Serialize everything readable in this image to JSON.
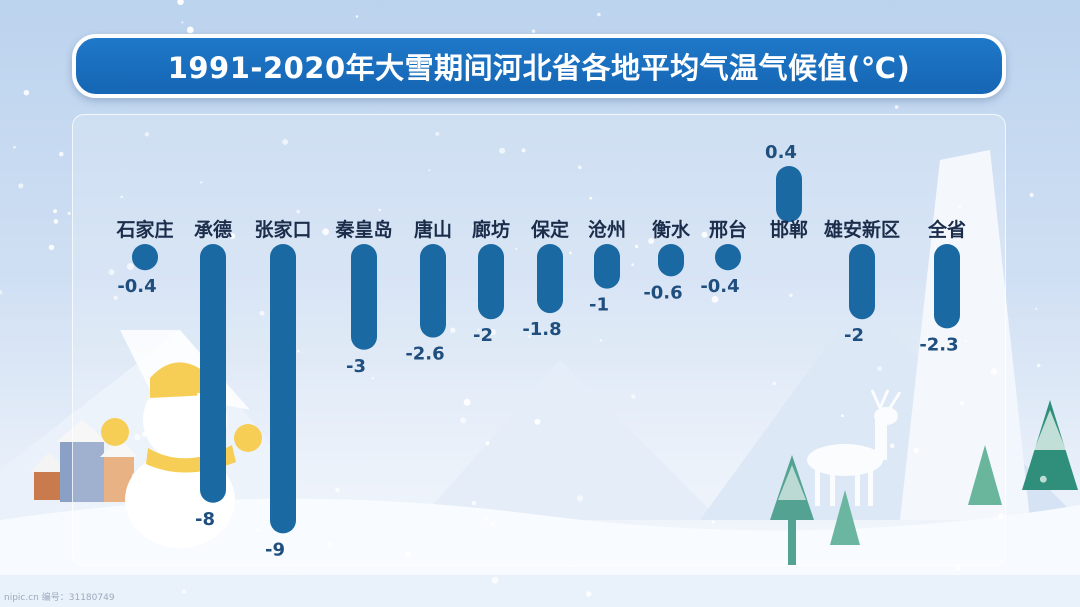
{
  "header": {
    "title": "1991-2020年大雪期间河北省各地平均气温气候值(℃)"
  },
  "footer": {
    "watermark": "nipic.cn  编号：31180749"
  },
  "colors": {
    "bar": "#1b69a3",
    "title_bg": "#1566b4",
    "label": "#1b2d4a",
    "value": "#1f4f7e"
  },
  "chart_data": {
    "type": "bar",
    "title": "1991-2020年大雪期间河北省各地平均气温气候值(℃)",
    "categories": [
      "石家庄",
      "承德",
      "张家口",
      "秦皇岛",
      "唐山",
      "廊坊",
      "保定",
      "沧州",
      "衡水",
      "邢台",
      "邯郸",
      "雄安新区",
      "全省"
    ],
    "values": [
      -0.4,
      -8,
      -9,
      -3,
      -2.6,
      -2,
      -1.8,
      -1,
      -0.6,
      -0.4,
      0.4,
      -2,
      -2.3
    ],
    "value_labels": [
      "-0.4",
      "-8",
      "-9",
      "-3",
      "-2.6",
      "-2",
      "-1.8",
      "-1",
      "-0.6",
      "-0.4",
      "0.4",
      "-2",
      "-2.3"
    ],
    "xlabel": "",
    "ylabel": "",
    "unit": "℃",
    "ylim": [
      -9,
      0.4
    ],
    "grid": false,
    "legend": "none"
  }
}
